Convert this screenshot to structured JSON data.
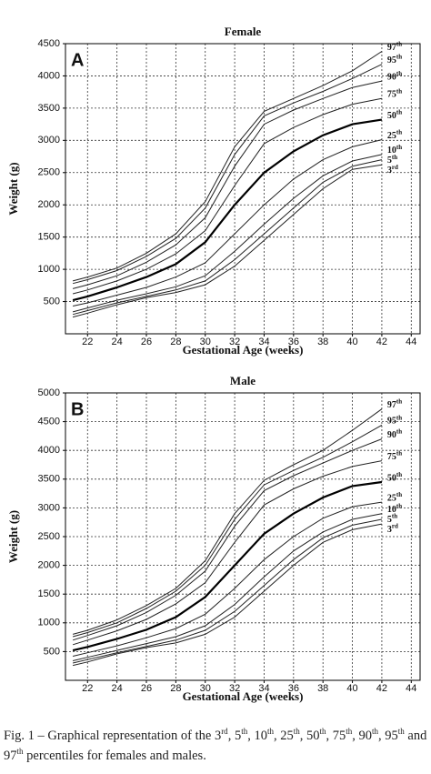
{
  "chart_data": [
    {
      "type": "line",
      "title": "Female",
      "panel": "A",
      "xlabel": "Gestational Age (weeks)",
      "ylabel": "Weight (g)",
      "xlim": [
        20.5,
        44.6
      ],
      "xticks": [
        22,
        24,
        26,
        28,
        30,
        32,
        34,
        36,
        38,
        40,
        42,
        44
      ],
      "ylim": [
        0,
        4500
      ],
      "yticks": [
        500,
        1000,
        1500,
        2000,
        2500,
        3000,
        3500,
        4000,
        4500
      ],
      "grid": true,
      "x": [
        21,
        22,
        24,
        26,
        28,
        30,
        32,
        34,
        36,
        38,
        40,
        42
      ],
      "series": [
        {
          "name": "97th",
          "color": "#222",
          "line_width": 1,
          "values": [
            820,
            880,
            1020,
            1250,
            1550,
            2050,
            2900,
            3450,
            3650,
            3850,
            4080,
            4380
          ]
        },
        {
          "name": "95th",
          "color": "#222",
          "line_width": 1,
          "values": [
            780,
            840,
            980,
            1200,
            1480,
            1950,
            2780,
            3380,
            3580,
            3760,
            3960,
            4180
          ]
        },
        {
          "name": "90th",
          "color": "#222",
          "line_width": 1,
          "values": [
            700,
            760,
            900,
            1110,
            1380,
            1800,
            2600,
            3250,
            3470,
            3650,
            3820,
            3920
          ]
        },
        {
          "name": "75th",
          "color": "#222",
          "line_width": 1,
          "values": [
            620,
            680,
            820,
            1000,
            1240,
            1600,
            2300,
            2950,
            3200,
            3400,
            3560,
            3650
          ]
        },
        {
          "name": "50th",
          "color": "#000",
          "line_width": 2.2,
          "values": [
            520,
            580,
            720,
            880,
            1080,
            1420,
            2000,
            2500,
            2830,
            3080,
            3250,
            3320
          ]
        },
        {
          "name": "25th",
          "color": "#222",
          "line_width": 1,
          "values": [
            430,
            480,
            600,
            720,
            880,
            1100,
            1550,
            2000,
            2400,
            2700,
            2900,
            3010
          ]
        },
        {
          "name": "10th",
          "color": "#222",
          "line_width": 1,
          "values": [
            340,
            400,
            520,
            620,
            730,
            900,
            1280,
            1700,
            2100,
            2450,
            2680,
            2780
          ]
        },
        {
          "name": "5th",
          "color": "#222",
          "line_width": 1,
          "values": [
            300,
            360,
            480,
            580,
            680,
            820,
            1150,
            1550,
            1950,
            2350,
            2600,
            2700
          ]
        },
        {
          "name": "3rd",
          "color": "#222",
          "line_width": 1,
          "values": [
            260,
            320,
            450,
            560,
            640,
            760,
            1050,
            1450,
            1850,
            2250,
            2550,
            2620
          ]
        }
      ]
    },
    {
      "type": "line",
      "title": "Male",
      "panel": "B",
      "xlabel": "Gestational Age (weeks)",
      "ylabel": "Weight (g)",
      "xlim": [
        20.5,
        44.6
      ],
      "xticks": [
        22,
        24,
        26,
        28,
        30,
        32,
        34,
        36,
        38,
        40,
        42,
        44
      ],
      "ylim": [
        0,
        5000
      ],
      "yticks": [
        500,
        1000,
        1500,
        2000,
        2500,
        3000,
        3500,
        4000,
        4500,
        5000
      ],
      "grid": true,
      "x": [
        21,
        22,
        24,
        26,
        28,
        30,
        32,
        34,
        36,
        38,
        40,
        42
      ],
      "series": [
        {
          "name": "97th",
          "color": "#222",
          "line_width": 1,
          "values": [
            800,
            870,
            1050,
            1300,
            1600,
            2080,
            2900,
            3480,
            3750,
            4000,
            4350,
            4720
          ]
        },
        {
          "name": "95th",
          "color": "#222",
          "line_width": 1,
          "values": [
            760,
            830,
            1000,
            1250,
            1550,
            2000,
            2800,
            3400,
            3650,
            3880,
            4150,
            4440
          ]
        },
        {
          "name": "90th",
          "color": "#222",
          "line_width": 1,
          "values": [
            700,
            780,
            950,
            1180,
            1480,
            1900,
            2680,
            3300,
            3560,
            3780,
            4000,
            4200
          ]
        },
        {
          "name": "75th",
          "color": "#222",
          "line_width": 1,
          "values": [
            620,
            700,
            860,
            1060,
            1330,
            1700,
            2400,
            3050,
            3330,
            3550,
            3720,
            3820
          ]
        },
        {
          "name": "50th",
          "color": "#000",
          "line_width": 2.2,
          "values": [
            520,
            580,
            720,
            880,
            1100,
            1450,
            2000,
            2550,
            2900,
            3180,
            3380,
            3450
          ]
        },
        {
          "name": "25th",
          "color": "#222",
          "line_width": 1,
          "values": [
            420,
            480,
            600,
            740,
            900,
            1150,
            1600,
            2100,
            2500,
            2820,
            3020,
            3100
          ]
        },
        {
          "name": "10th",
          "color": "#222",
          "line_width": 1,
          "values": [
            340,
            400,
            520,
            640,
            760,
            950,
            1320,
            1800,
            2250,
            2580,
            2800,
            2900
          ]
        },
        {
          "name": "5th",
          "color": "#222",
          "line_width": 1,
          "values": [
            300,
            360,
            480,
            590,
            700,
            870,
            1200,
            1650,
            2100,
            2480,
            2700,
            2800
          ]
        },
        {
          "name": "3rd",
          "color": "#222",
          "line_width": 1,
          "values": [
            260,
            320,
            460,
            570,
            650,
            800,
            1100,
            1550,
            2000,
            2400,
            2620,
            2720
          ]
        }
      ]
    }
  ],
  "caption": "Fig. 1 – Graphical representation of the 3rd, 5th, 10th, 25th, 50th, 75th, 90th, 95th and 97th percentiles for females and males."
}
